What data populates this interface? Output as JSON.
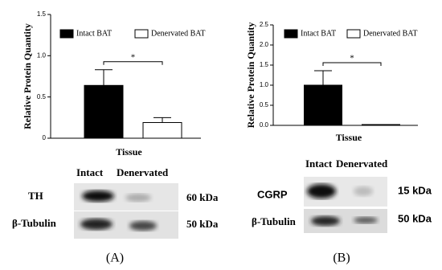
{
  "chart_data": [
    {
      "type": "bar",
      "ylabel": "Relative Protein Quantity",
      "xlabel": "Tissue",
      "annotation": "*",
      "categories": [
        null
      ],
      "series": [
        {
          "name": "Intact BAT",
          "color": "#000000",
          "values": [
            0.64
          ],
          "errors": [
            0.19
          ]
        },
        {
          "name": "Denervated BAT",
          "color": "#ffffff",
          "values": [
            0.19
          ],
          "errors": [
            0.06
          ]
        }
      ],
      "ylim": [
        0,
        1.5
      ],
      "yticks": [
        0,
        0.5,
        {
          "value": 1,
          "label": "1.0"
        },
        1.5
      ]
    },
    {
      "type": "bar",
      "ylabel": "Relative Protein Quantity",
      "xlabel": "Tissue",
      "annotation": "*",
      "categories": [
        null
      ],
      "series": [
        {
          "name": "Intact BAT",
          "color": "#000000",
          "values": [
            1.0
          ],
          "errors": [
            0.36
          ]
        },
        {
          "name": "Denervated BAT",
          "color": "#ffffff",
          "values": [
            0.02
          ],
          "errors": [
            0
          ]
        }
      ],
      "ylim": [
        0,
        2.5
      ],
      "yticks": [
        {
          "value": 0,
          "label": "0.0"
        },
        0.5,
        {
          "value": 1,
          "label": "1.0"
        },
        1.5,
        {
          "value": 2,
          "label": "2.0"
        },
        2.5
      ]
    }
  ],
  "panels": [
    {
      "label": "(A)",
      "lanes": [
        "Intact",
        "Denervated"
      ],
      "rows": [
        {
          "name": "TH",
          "size": "60 kDa"
        },
        {
          "name": "β-Tubulin",
          "size": "50 kDa"
        }
      ]
    },
    {
      "label": "(B)",
      "lanes": [
        "Intact",
        "Denervated"
      ],
      "rows": [
        {
          "name": "CGRP",
          "size": "15 kDa"
        },
        {
          "name": "β-Tubulin",
          "size": "50 kDa"
        }
      ]
    }
  ]
}
